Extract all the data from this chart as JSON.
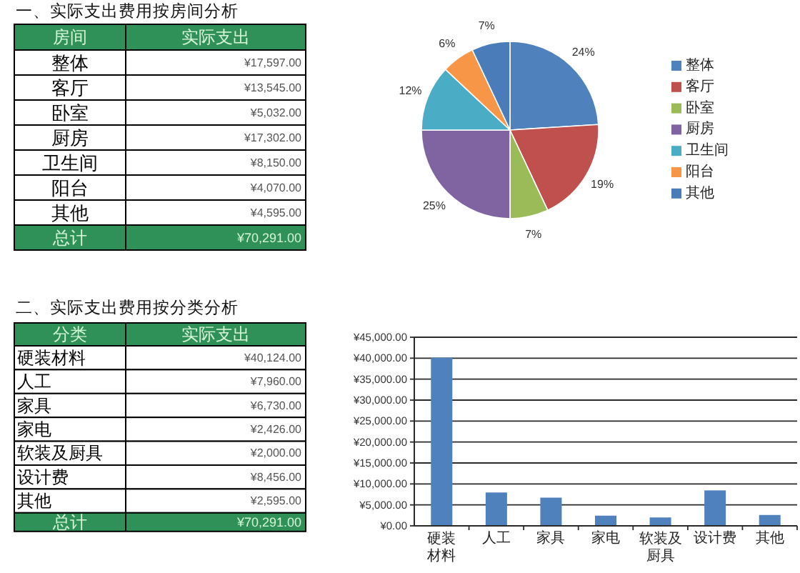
{
  "chart_data": [
    {
      "type": "other",
      "title": "一、实际支出费用按房间分析",
      "xlabel": "房间",
      "ylabel": "实际支出",
      "categories": [
        "整体",
        "客厅",
        "卧室",
        "厨房",
        "卫生间",
        "阳台",
        "其他"
      ],
      "value_labels": [
        "¥17,597.00",
        "¥13,545.00",
        "¥5,032.00",
        "¥17,302.00",
        "¥8,150.00",
        "¥4,070.00",
        "¥4,595.00"
      ],
      "annotations": [
        "总计",
        "¥70,291.00"
      ]
    },
    {
      "type": "pie",
      "categories": [
        "整体",
        "客厅",
        "卧室",
        "厨房",
        "卫生间",
        "阳台",
        "其他"
      ],
      "values": [
        24,
        19,
        7,
        25,
        12,
        6,
        7
      ],
      "value_labels": [
        "24%",
        "19%",
        "7%",
        "25%",
        "12%",
        "6%",
        "7%"
      ],
      "colors": [
        "#4f81bd",
        "#c0504d",
        "#9bbb59",
        "#8064a2",
        "#4bacc6",
        "#f79646",
        "#4a7cba"
      ],
      "legend": "right"
    },
    {
      "type": "other",
      "title": "二、实际支出费用按分类分析",
      "xlabel": "分类",
      "ylabel": "实际支出",
      "categories": [
        "硬装材料",
        "人工",
        "家具",
        "家电",
        "软装及厨具",
        "设计费",
        "其他"
      ],
      "value_labels": [
        "¥40,124.00",
        "¥7,960.00",
        "¥6,730.00",
        "¥2,426.00",
        "¥2,000.00",
        "¥8,456.00",
        "¥2,595.00"
      ],
      "annotations": [
        "总计",
        "¥70,291.00"
      ]
    },
    {
      "type": "bar",
      "categories": [
        "硬装材料",
        "人工",
        "家具",
        "家电",
        "软装及厨具",
        "设计费",
        "其他"
      ],
      "values": [
        40124,
        7960,
        6730,
        2426,
        2000,
        8456,
        2595
      ],
      "color": "#4f81bd",
      "ylim": [
        0,
        45000
      ],
      "yticks": [
        {
          "value": 0,
          "label": "¥0.00"
        },
        {
          "value": 5000,
          "label": "¥5,000.00"
        },
        {
          "value": 10000,
          "label": "¥10,000.00"
        },
        {
          "value": 15000,
          "label": "¥15,000.00"
        },
        {
          "value": 20000,
          "label": "¥20,000.00"
        },
        {
          "value": 25000,
          "label": "¥25,000.00"
        },
        {
          "value": 30000,
          "label": "¥30,000.00"
        },
        {
          "value": 35000,
          "label": "¥35,000.00"
        },
        {
          "value": 40000,
          "label": "¥40,000.00"
        },
        {
          "value": 45000,
          "label": "¥45,000.00"
        }
      ],
      "grid": "y"
    }
  ]
}
